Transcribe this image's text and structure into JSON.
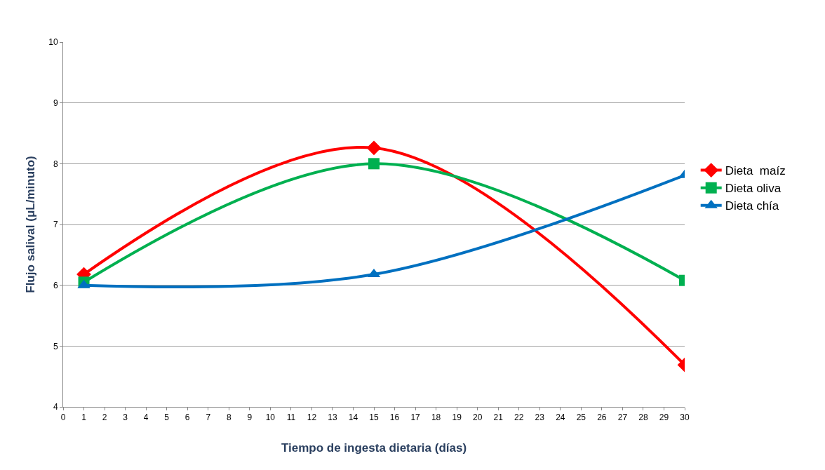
{
  "chart_data": {
    "type": "line",
    "xlabel": "Tiempo de ingesta dietaria (días)",
    "ylabel": "Flujo salival (μL/minuto)",
    "x": [
      1,
      15,
      30
    ],
    "series": [
      {
        "name": "Dieta  maíz",
        "color": "#ff0000",
        "marker": "diamond",
        "values": [
          6.18,
          8.26,
          4.69
        ]
      },
      {
        "name": "Dieta oliva",
        "color": "#00b050",
        "marker": "square",
        "values": [
          6.05,
          8.0,
          6.08
        ]
      },
      {
        "name": "Dieta chía",
        "color": "#0070c0",
        "marker": "triangle",
        "values": [
          6.0,
          6.18,
          7.81
        ]
      }
    ],
    "xlim": [
      0,
      30
    ],
    "xticks": [
      0,
      1,
      2,
      3,
      4,
      5,
      6,
      7,
      8,
      9,
      10,
      11,
      12,
      13,
      14,
      15,
      16,
      17,
      18,
      19,
      20,
      21,
      22,
      23,
      24,
      25,
      26,
      27,
      28,
      29,
      30
    ],
    "ylim": [
      4,
      10
    ],
    "yticks": [
      4,
      5,
      6,
      7,
      8,
      9,
      10
    ],
    "grid": "y",
    "legend": "right",
    "line_style": "solid"
  }
}
